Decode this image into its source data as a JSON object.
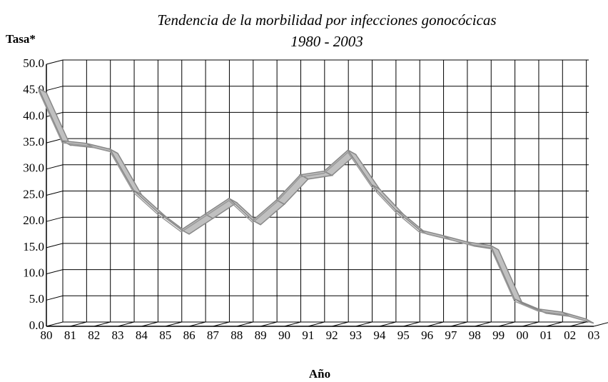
{
  "chart_data": {
    "type": "line",
    "title": "Tendencia de la morbilidad por infecciones gonocócicas",
    "subtitle": "1980 - 2003",
    "y_label": "Tasa*",
    "x_label": "Año",
    "categories": [
      "80",
      "81",
      "82",
      "83",
      "84",
      "85",
      "86",
      "87",
      "88",
      "89",
      "90",
      "91",
      "92",
      "93",
      "94",
      "95",
      "96",
      "97",
      "98",
      "99",
      "00",
      "01",
      "02",
      "03"
    ],
    "series": [
      {
        "name": "Tasa",
        "color": "#c0c0c0",
        "values": [
          45,
          35,
          34.5,
          33.4,
          25.5,
          21.4,
          18,
          21,
          24,
          19.8,
          23.7,
          28.5,
          29.2,
          33.2,
          26.6,
          21.8,
          18,
          16.9,
          15.7,
          15,
          4.8,
          2.9,
          2.3,
          1
        ]
      }
    ],
    "ylim": [
      0,
      50
    ],
    "yticks": [
      {
        "value": 0,
        "label": "0.0"
      },
      {
        "value": 5,
        "label": "5.0"
      },
      {
        "value": 10,
        "label": "10.0"
      },
      {
        "value": 15,
        "label": "15.0"
      },
      {
        "value": 20,
        "label": "20.0"
      },
      {
        "value": 25,
        "label": "25.0"
      },
      {
        "value": 30,
        "label": "30.0"
      },
      {
        "value": 35,
        "label": "35.0"
      },
      {
        "value": 40,
        "label": "40.0"
      },
      {
        "value": 45,
        "label": "45.0"
      },
      {
        "value": 50,
        "label": "50.0"
      }
    ],
    "grid": true
  }
}
